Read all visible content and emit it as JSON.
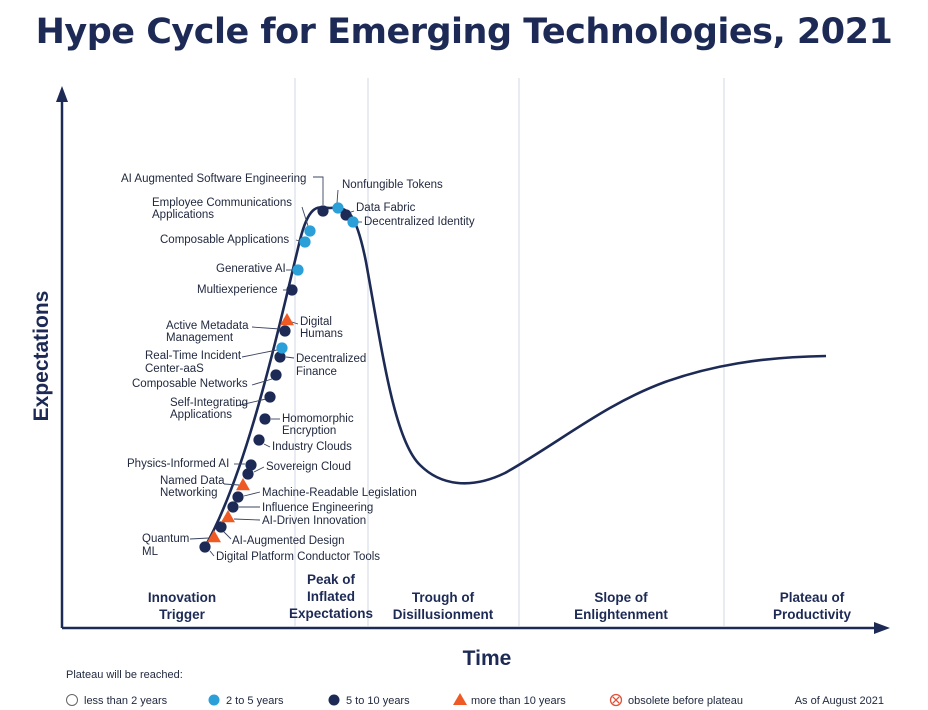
{
  "title": "Hype Cycle for Emerging Technologies, 2021",
  "axes": {
    "y_title": "Expectations",
    "x_title": "Time"
  },
  "colors": {
    "navy": "#1c2a55",
    "light_blue": "#2a9fd8",
    "orange": "#ef5a24",
    "obsolete_red": "#e0533a"
  },
  "phases": [
    {
      "name": "innovation-trigger",
      "lines": [
        "Innovation",
        "Trigger"
      ]
    },
    {
      "name": "peak",
      "lines": [
        "Peak of",
        "Inflated",
        "Expectations"
      ]
    },
    {
      "name": "trough",
      "lines": [
        "Trough of",
        "Disillusionment"
      ]
    },
    {
      "name": "slope",
      "lines": [
        "Slope of",
        "Enlightenment"
      ]
    },
    {
      "name": "plateau",
      "lines": [
        "Plateau of",
        "Productivity"
      ]
    }
  ],
  "technologies": [
    {
      "name": "Digital Platform Conductor Tools",
      "plateau": "5 to 10 years"
    },
    {
      "name": "Quantum ML",
      "plateau": "more than 10 years"
    },
    {
      "name": "AI-Augmented Design",
      "plateau": "5 to 10 years"
    },
    {
      "name": "AI-Driven Innovation",
      "plateau": "more than 10 years"
    },
    {
      "name": "Influence Engineering",
      "plateau": "5 to 10 years"
    },
    {
      "name": "Machine-Readable Legislation",
      "plateau": "5 to 10 years"
    },
    {
      "name": "Named Data Networking",
      "plateau": "more than 10 years"
    },
    {
      "name": "Sovereign Cloud",
      "plateau": "5 to 10 years"
    },
    {
      "name": "Physics-Informed AI",
      "plateau": "5 to 10 years"
    },
    {
      "name": "Industry Clouds",
      "plateau": "5 to 10 years"
    },
    {
      "name": "Homomorphic Encryption",
      "plateau": "5 to 10 years"
    },
    {
      "name": "Self-Integrating Applications",
      "plateau": "5 to 10 years"
    },
    {
      "name": "Composable Networks",
      "plateau": "5 to 10 years"
    },
    {
      "name": "Decentralized Finance",
      "plateau": "5 to 10 years"
    },
    {
      "name": "Real-Time Incident Center-aaS",
      "plateau": "2 to 5 years"
    },
    {
      "name": "Active Metadata Management",
      "plateau": "5 to 10 years"
    },
    {
      "name": "Digital Humans",
      "plateau": "more than 10 years"
    },
    {
      "name": "Multiexperience",
      "plateau": "5 to 10 years"
    },
    {
      "name": "Generative AI",
      "plateau": "2 to 5 years"
    },
    {
      "name": "Composable Applications",
      "plateau": "2 to 5 years"
    },
    {
      "name": "Employee Communications Applications",
      "plateau": "2 to 5 years"
    },
    {
      "name": "AI Augmented Software Engineering",
      "plateau": "5 to 10 years"
    },
    {
      "name": "Nonfungible Tokens",
      "plateau": "2 to 5 years"
    },
    {
      "name": "Data Fabric",
      "plateau": "5 to 10 years"
    },
    {
      "name": "Decentralized Identity",
      "plateau": "2 to 5 years"
    }
  ],
  "legend": {
    "heading": "Plateau will be reached:",
    "items": [
      {
        "label": "less than 2 years",
        "icon": "hollow-circle-icon"
      },
      {
        "label": "2 to 5 years",
        "icon": "light-blue-circle-icon"
      },
      {
        "label": "5 to 10 years",
        "icon": "navy-circle-icon"
      },
      {
        "label": "more than 10 years",
        "icon": "orange-triangle-icon"
      },
      {
        "label": "obsolete before plateau",
        "icon": "crossed-circle-icon"
      }
    ],
    "as_of": "As of August 2021"
  }
}
